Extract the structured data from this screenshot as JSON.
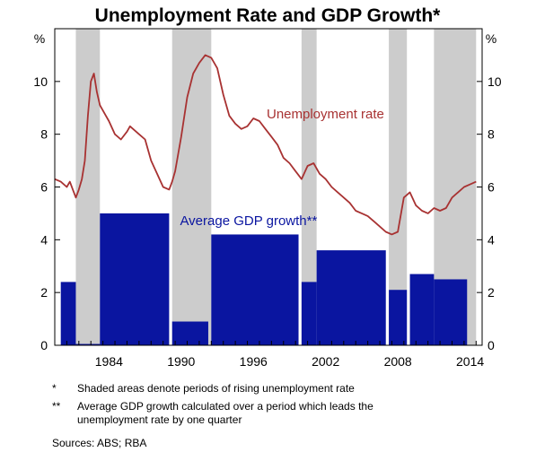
{
  "chart_data": {
    "type": "bar",
    "title": "Unemployment Rate and GDP Growth*",
    "y_unit": "%",
    "ylim": [
      0,
      12
    ],
    "y_ticks": [
      0,
      2,
      4,
      6,
      8,
      10
    ],
    "xlim": [
      1980.0,
      2015.5
    ],
    "x_ticks": [
      1984,
      1990,
      1996,
      2002,
      2008,
      2014
    ],
    "grid": false,
    "shaded_periods": [
      [
        1981.75,
        1983.75
      ],
      [
        1989.75,
        1993.0
      ],
      [
        2000.5,
        2001.75
      ],
      [
        2007.75,
        2009.25
      ],
      [
        2011.5,
        2015.0
      ]
    ],
    "bars": {
      "name": "Average GDP growth**",
      "color": "#0a15a0",
      "periods": [
        {
          "start": 1980.5,
          "end": 1981.75,
          "value": 2.4
        },
        {
          "start": 1981.75,
          "end": 1983.75,
          "value": 0.05
        },
        {
          "start": 1983.75,
          "end": 1989.5,
          "value": 5.0
        },
        {
          "start": 1989.75,
          "end": 1992.75,
          "value": 0.9
        },
        {
          "start": 1993.0,
          "end": 2000.25,
          "value": 4.2
        },
        {
          "start": 2000.5,
          "end": 2001.75,
          "value": 2.4
        },
        {
          "start": 2001.75,
          "end": 2007.5,
          "value": 3.6
        },
        {
          "start": 2007.75,
          "end": 2009.25,
          "value": 2.1
        },
        {
          "start": 2009.5,
          "end": 2011.5,
          "value": 2.7
        },
        {
          "start": 2011.5,
          "end": 2014.25,
          "value": 2.5
        }
      ]
    },
    "line": {
      "name": "Unemployment rate",
      "color": "#a83232",
      "x": [
        1980.0,
        1980.5,
        1981.0,
        1981.25,
        1981.5,
        1981.75,
        1982.0,
        1982.25,
        1982.5,
        1982.75,
        1983.0,
        1983.25,
        1983.5,
        1983.75,
        1984.0,
        1984.5,
        1985.0,
        1985.5,
        1986.0,
        1986.25,
        1986.5,
        1987.0,
        1987.5,
        1988.0,
        1988.5,
        1989.0,
        1989.5,
        1989.75,
        1990.0,
        1990.5,
        1991.0,
        1991.5,
        1992.0,
        1992.5,
        1993.0,
        1993.5,
        1994.0,
        1994.5,
        1995.0,
        1995.5,
        1996.0,
        1996.5,
        1997.0,
        1997.5,
        1998.0,
        1998.5,
        1999.0,
        1999.5,
        2000.0,
        2000.5,
        2001.0,
        2001.5,
        2002.0,
        2002.5,
        2003.0,
        2003.5,
        2004.0,
        2004.5,
        2005.0,
        2005.5,
        2006.0,
        2006.5,
        2007.0,
        2007.5,
        2008.0,
        2008.5,
        2009.0,
        2009.5,
        2010.0,
        2010.5,
        2011.0,
        2011.5,
        2012.0,
        2012.5,
        2013.0,
        2013.5,
        2014.0,
        2014.5,
        2015.0
      ],
      "values": [
        6.3,
        6.2,
        6.0,
        6.2,
        5.9,
        5.6,
        5.9,
        6.3,
        7.0,
        8.7,
        10.0,
        10.3,
        9.6,
        9.1,
        8.9,
        8.5,
        8.0,
        7.8,
        8.1,
        8.3,
        8.2,
        8.0,
        7.8,
        7.0,
        6.5,
        6.0,
        5.9,
        6.2,
        6.6,
        7.9,
        9.4,
        10.3,
        10.7,
        11.0,
        10.9,
        10.5,
        9.5,
        8.7,
        8.4,
        8.2,
        8.3,
        8.6,
        8.5,
        8.2,
        7.9,
        7.6,
        7.1,
        6.9,
        6.6,
        6.3,
        6.8,
        6.9,
        6.5,
        6.3,
        6.0,
        5.8,
        5.6,
        5.4,
        5.1,
        5.0,
        4.9,
        4.7,
        4.5,
        4.3,
        4.2,
        4.3,
        5.6,
        5.8,
        5.3,
        5.1,
        5.0,
        5.2,
        5.1,
        5.2,
        5.6,
        5.8,
        6.0,
        6.1,
        6.2
      ]
    },
    "labels": {
      "line_label": "Unemployment rate",
      "bars_label": "Average GDP growth**"
    },
    "shade_color": "#cccccc"
  },
  "footnotes": [
    {
      "mark": "*",
      "text": "Shaded areas denote periods of rising unemployment rate"
    },
    {
      "mark": "**",
      "text": "Average GDP growth calculated over a period which leads the unemployment rate by one quarter"
    }
  ],
  "sources": "Sources:   ABS; RBA"
}
